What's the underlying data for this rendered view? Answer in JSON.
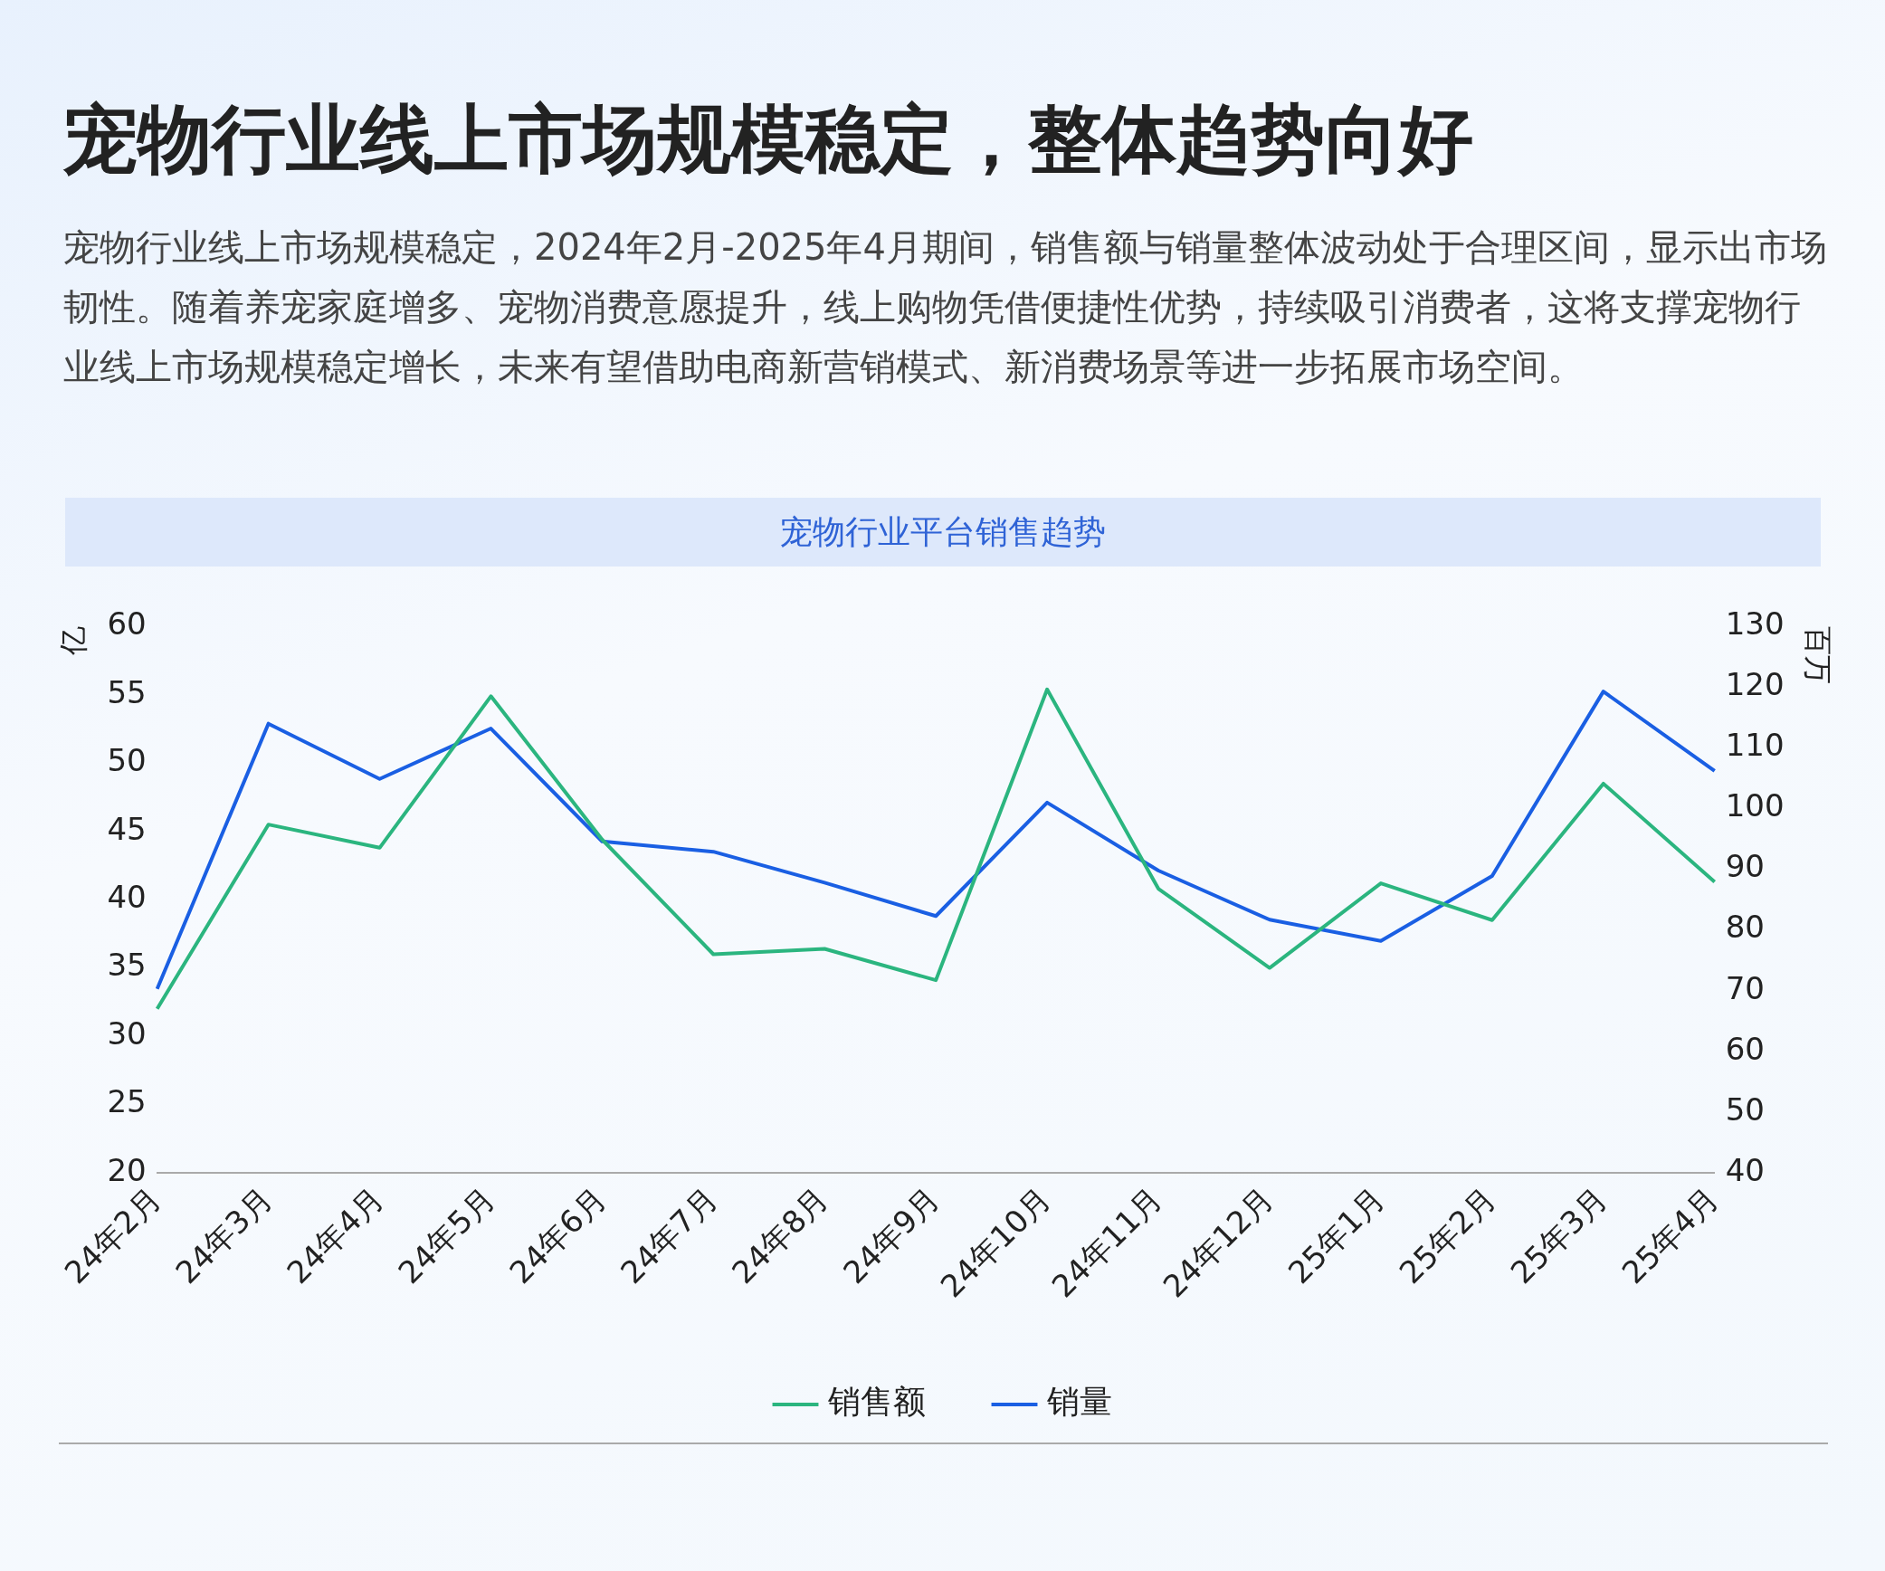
{
  "chart_data": {
    "type": "line",
    "title": "宠物行业线上市场规模稳定，整体趋势向好",
    "subtitle": "宠物行业线上市场规模稳定，2024年2月-2025年4月期间，销售额与销量整体波动处于合理区间，显示出市场韧性。随着养宠家庭增多、宠物消费意愿提升，线上购物凭借便捷性优势，持续吸引消费者，这将支撑宠物行业线上市场规模稳定增长，未来有望借助电商新营销模式、新消费场景等进一步拓展市场空间。",
    "annotations": [
      "宠物行业平台销售趋势"
    ],
    "categories": [
      "24年2月",
      "24年3月",
      "24年4月",
      "24年5月",
      "24年6月",
      "24年7月",
      "24年8月",
      "24年9月",
      "24年10月",
      "24年11月",
      "24年12月",
      "25年1月",
      "25年2月",
      "25年3月",
      "25年4月"
    ],
    "series": [
      {
        "name": "销售额",
        "color": "#2bb57f",
        "values": [
          32.0,
          45.5,
          43.8,
          54.9,
          44.4,
          36.0,
          36.4,
          34.1,
          55.4,
          40.8,
          35.0,
          41.2,
          38.5,
          48.5,
          41.3
        ]
      },
      {
        "name": "销量",
        "color": "#1a5fe3",
        "axis": "y2",
        "values": [
          70.3,
          114.0,
          104.9,
          113.2,
          94.6,
          92.9,
          87.8,
          82.3,
          101.0,
          89.8,
          81.7,
          78.2,
          88.9,
          119.3,
          106.2
        ]
      }
    ],
    "ylabel": "亿",
    "y2label": "百万",
    "ylim": [
      20,
      60
    ],
    "yticks": [
      20,
      25,
      30,
      35,
      40,
      45,
      50,
      55,
      60
    ],
    "y2lim": [
      40,
      130
    ],
    "y2ticks": [
      40,
      50,
      60,
      70,
      80,
      90,
      100,
      110,
      120,
      130
    ],
    "grid": false,
    "legend": "bottom",
    "marker": "none",
    "line_style": "solid"
  }
}
